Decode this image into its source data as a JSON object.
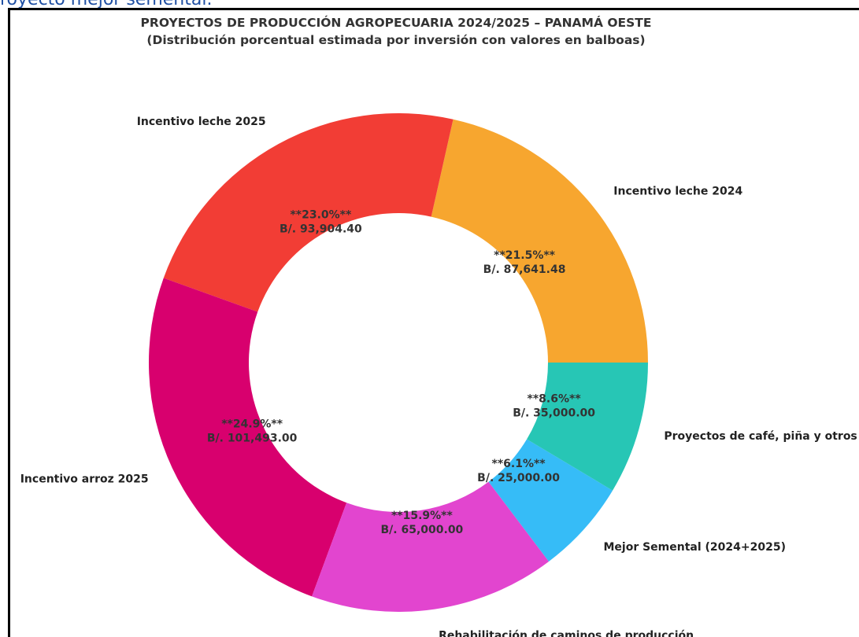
{
  "top_caption": "royecto mejor semental.",
  "chart_data": {
    "type": "pie",
    "donut": true,
    "title": "PROYECTOS DE PRODUCCIÓN AGROPECUARIA 2024/2025 – PANAMÁ OESTE",
    "subtitle": "(Distribución porcentual estimada por inversión con valores en balboas)",
    "slices": [
      {
        "label": "Incentivo leche 2024",
        "value": 87641.48,
        "percent_text": "**21.5%**",
        "value_text": "B/. 87,641.48",
        "color": "#F7A62F"
      },
      {
        "label": "Incentivo leche 2025",
        "value": 93904.4,
        "percent_text": "**23.0%**",
        "value_text": "B/. 93,904.40",
        "color": "#F23D35"
      },
      {
        "label": "Incentivo arroz 2025",
        "value": 101493.0,
        "percent_text": "**24.9%**",
        "value_text": "B/. 101,493.00",
        "color": "#D8006E"
      },
      {
        "label": "Rehabilitación de caminos de producción",
        "value": 65000.0,
        "percent_text": "**15.9%**",
        "value_text": "B/. 65,000.00",
        "color": "#E245CF"
      },
      {
        "label": "Mejor Semental (2024+2025)",
        "value": 25000.0,
        "percent_text": "**6.1%**",
        "value_text": "B/. 25,000.00",
        "color": "#36BCF7"
      },
      {
        "label": "Proyectos de café, piña y otros",
        "value": 35000.0,
        "percent_text": "**8.6%**",
        "value_text": "B/. 35,000.00",
        "color": "#27C6B5"
      }
    ]
  }
}
